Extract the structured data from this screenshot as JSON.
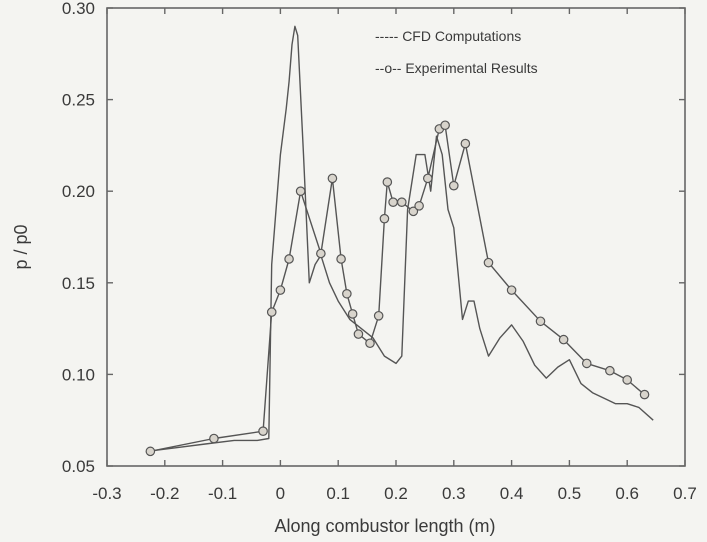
{
  "chart_data": {
    "type": "line",
    "title": "",
    "xlabel": "Along combustor length (m)",
    "ylabel": "p / p0",
    "xlim": [
      -0.3,
      0.7
    ],
    "ylim": [
      0.05,
      0.3
    ],
    "xticks": [
      "-0.3",
      "-0.2",
      "-0.1",
      "0",
      "0.1",
      "0.2",
      "0.3",
      "0.4",
      "0.5",
      "0.6",
      "0.7"
    ],
    "yticks": [
      "0.05",
      "0.10",
      "0.15",
      "0.20",
      "0.25",
      "0.30"
    ],
    "grid": false,
    "legend": "top-right",
    "series": [
      {
        "name": "CFD Computations",
        "legend_label": "----- CFD Computations",
        "marker": "none",
        "color": "#555555",
        "x": [
          -0.23,
          -0.18,
          -0.13,
          -0.08,
          -0.04,
          -0.02,
          -0.015,
          -0.01,
          0.0,
          0.01,
          0.015,
          0.02,
          0.025,
          0.03,
          0.04,
          0.05,
          0.06,
          0.07,
          0.085,
          0.1,
          0.12,
          0.14,
          0.16,
          0.18,
          0.2,
          0.21,
          0.22,
          0.235,
          0.25,
          0.26,
          0.27,
          0.28,
          0.29,
          0.3,
          0.315,
          0.325,
          0.335,
          0.345,
          0.36,
          0.38,
          0.4,
          0.42,
          0.44,
          0.46,
          0.48,
          0.5,
          0.52,
          0.54,
          0.56,
          0.58,
          0.6,
          0.62,
          0.645
        ],
        "y": [
          0.058,
          0.06,
          0.062,
          0.064,
          0.064,
          0.065,
          0.16,
          0.18,
          0.22,
          0.245,
          0.26,
          0.28,
          0.29,
          0.285,
          0.22,
          0.15,
          0.16,
          0.165,
          0.15,
          0.14,
          0.13,
          0.125,
          0.12,
          0.11,
          0.106,
          0.11,
          0.19,
          0.22,
          0.22,
          0.2,
          0.23,
          0.22,
          0.19,
          0.18,
          0.13,
          0.14,
          0.14,
          0.125,
          0.11,
          0.12,
          0.127,
          0.118,
          0.105,
          0.098,
          0.104,
          0.108,
          0.095,
          0.09,
          0.087,
          0.084,
          0.084,
          0.082,
          0.075
        ]
      },
      {
        "name": "Experimental Results",
        "legend_label": "--o-- Experimental Results",
        "marker": "circle",
        "color": "#555555",
        "x": [
          -0.225,
          -0.115,
          -0.03,
          -0.015,
          0.0,
          0.015,
          0.035,
          0.07,
          0.09,
          0.105,
          0.115,
          0.125,
          0.135,
          0.155,
          0.17,
          0.18,
          0.185,
          0.195,
          0.21,
          0.23,
          0.24,
          0.255,
          0.275,
          0.285,
          0.3,
          0.32,
          0.36,
          0.4,
          0.45,
          0.49,
          0.53,
          0.57,
          0.6,
          0.63
        ],
        "y": [
          0.058,
          0.065,
          0.069,
          0.134,
          0.146,
          0.163,
          0.2,
          0.166,
          0.207,
          0.163,
          0.144,
          0.133,
          0.122,
          0.117,
          0.132,
          0.185,
          0.205,
          0.194,
          0.194,
          0.189,
          0.192,
          0.207,
          0.234,
          0.236,
          0.203,
          0.226,
          0.161,
          0.146,
          0.129,
          0.119,
          0.106,
          0.102,
          0.097,
          0.089
        ]
      }
    ]
  }
}
